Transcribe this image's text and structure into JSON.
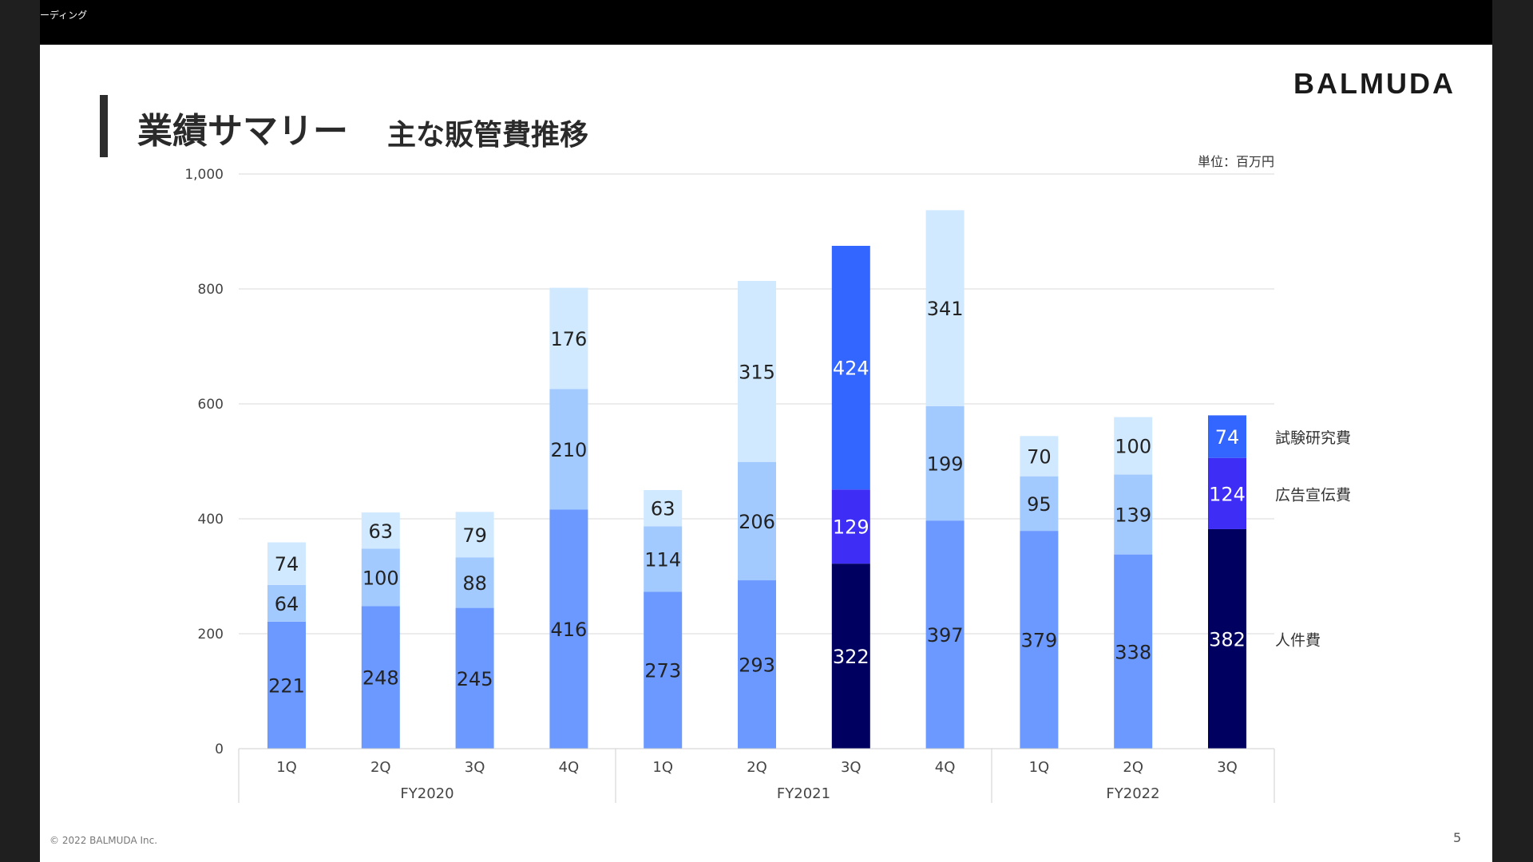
{
  "recording": {
    "label": "レコーディング"
  },
  "slide": {
    "title": "業績サマリー",
    "subtitle": "主な販管費推移",
    "logo": "BALMUDA",
    "unit": "単位：百万円",
    "footer": "© 2022 BALMUDA Inc.",
    "page": "5"
  },
  "colors": {
    "personnel_light": "#6b99ff",
    "advertising_light": "#a3caff",
    "rnd_light": "#d0e9ff",
    "personnel_dark": "#000060",
    "advertising_dark": "#3d2df5",
    "rnd_dark": "#3366ff",
    "grid": "#d9d9d9"
  },
  "chart_data": {
    "type": "bar",
    "stacked": true,
    "ylim": [
      0,
      1000
    ],
    "yticks": [
      "0",
      "200",
      "400",
      "600",
      "800",
      "1,000"
    ],
    "categories": [
      "1Q",
      "2Q",
      "3Q",
      "4Q",
      "1Q",
      "2Q",
      "3Q",
      "4Q",
      "1Q",
      "2Q",
      "3Q"
    ],
    "groups": [
      {
        "label": "FY2020",
        "count": 4
      },
      {
        "label": "FY2021",
        "count": 4
      },
      {
        "label": "FY2022",
        "count": 3
      }
    ],
    "highlight": [
      6,
      10
    ],
    "series": [
      {
        "name": "人件費",
        "values": [
          221,
          248,
          245,
          416,
          273,
          293,
          322,
          397,
          379,
          338,
          382
        ]
      },
      {
        "name": "広告宣伝費",
        "values": [
          64,
          100,
          88,
          210,
          114,
          206,
          129,
          199,
          95,
          139,
          124
        ]
      },
      {
        "name": "試験研究費",
        "values": [
          74,
          63,
          79,
          176,
          63,
          315,
          424,
          341,
          70,
          100,
          74
        ]
      }
    ],
    "grid": true,
    "legend": "right"
  }
}
